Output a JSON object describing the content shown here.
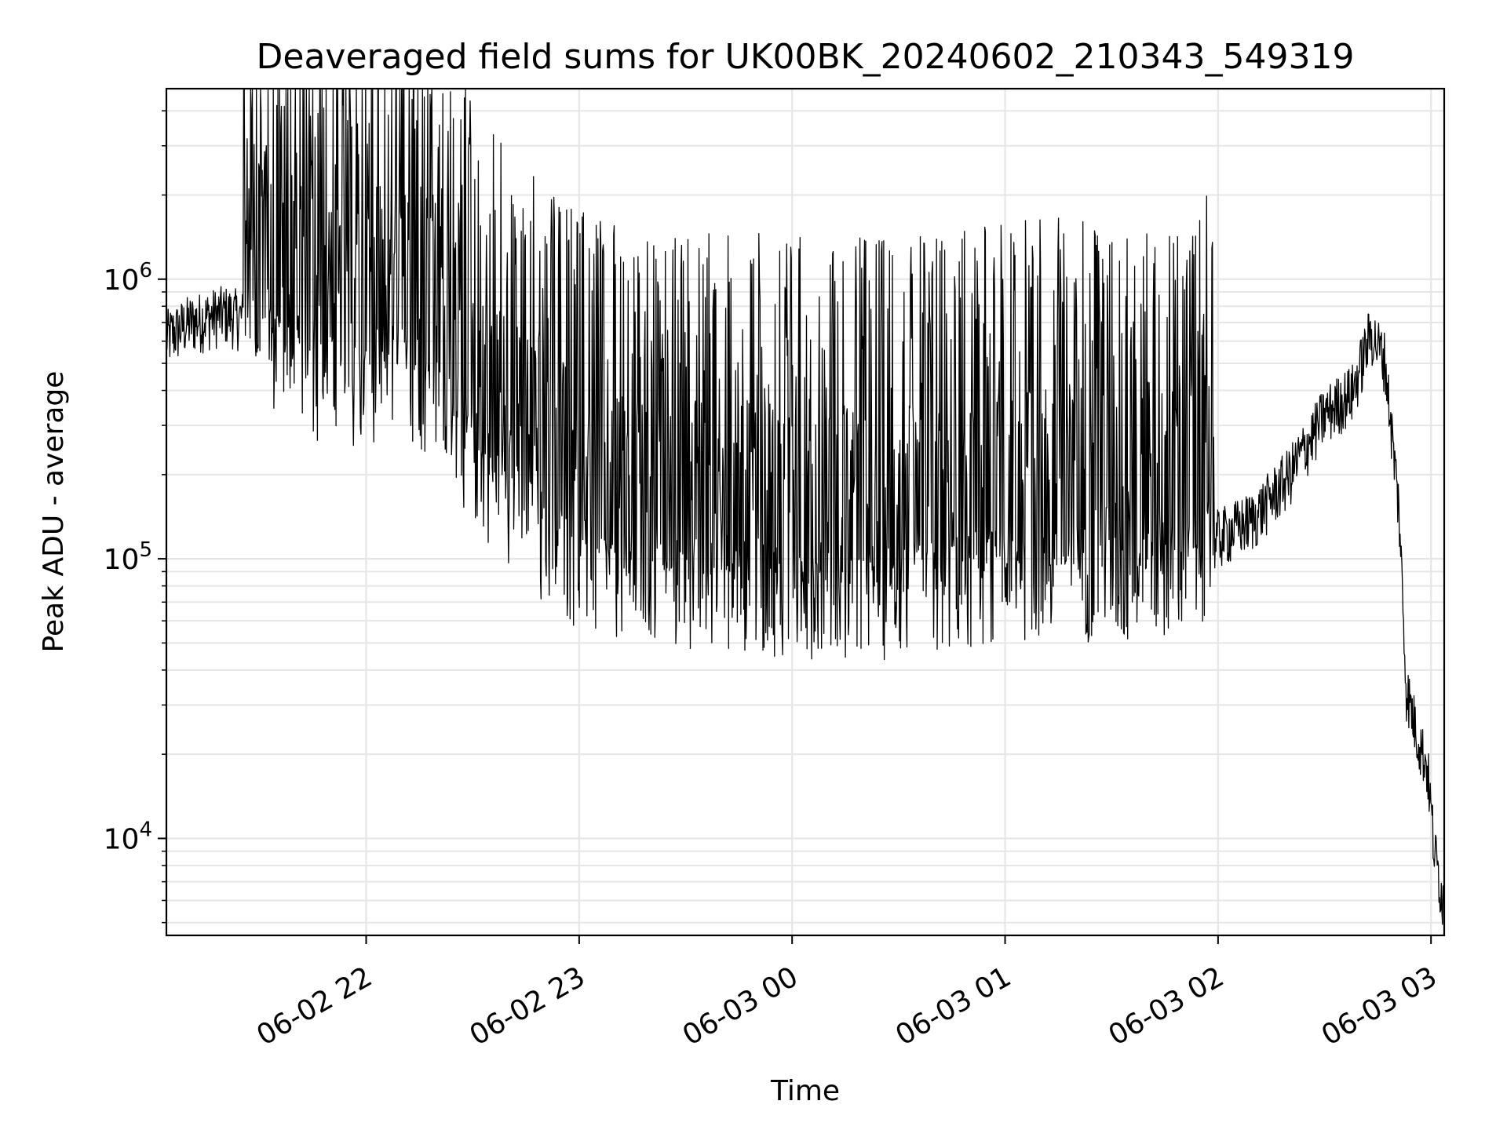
{
  "chart_data": {
    "type": "line",
    "title": "Deaveraged field sums for UK00BK_20240602_210343_549319",
    "xlabel": "Time",
    "ylabel": "Peak ADU - average",
    "y_scale": "log",
    "grid": true,
    "x_ticks": [
      "06-02 22",
      "06-02 23",
      "06-03 00",
      "06-03 01",
      "06-03 02",
      "06-03 03"
    ],
    "y_ticks": [
      {
        "value": 10000,
        "mantissa": "10",
        "exponent": "4"
      },
      {
        "value": 100000,
        "mantissa": "10",
        "exponent": "5"
      },
      {
        "value": 1000000,
        "mantissa": "10",
        "exponent": "6"
      }
    ],
    "x_range": [
      "2024-06-02 21:03:43",
      "2024-06-03 03:03:43"
    ],
    "y_range": [
      4500,
      4800000
    ],
    "series": [
      {
        "color": "#000000",
        "points": [
          [
            "2024-06-02 21:03:43",
            620000
          ],
          [
            "2024-06-02 21:10",
            700000
          ],
          [
            "2024-06-02 21:20",
            760000
          ],
          [
            "2024-06-02 21:30",
            700000
          ],
          [
            "2024-06-02 21:36",
            560000
          ],
          [
            "2024-06-02 21:45",
            480000
          ],
          [
            "2024-06-02 21:55",
            400000
          ],
          [
            "2024-06-02 22:05",
            500000
          ],
          [
            "2024-06-02 22:15",
            450000
          ],
          [
            "2024-06-02 22:25",
            300000
          ],
          [
            "2024-06-02 22:35",
            200000
          ],
          [
            "2024-06-02 22:45",
            140000
          ],
          [
            "2024-06-02 22:55",
            110000
          ],
          [
            "2024-06-02 23:05",
            90000
          ],
          [
            "2024-06-02 23:20",
            80000
          ],
          [
            "2024-06-02 23:40",
            85000
          ],
          [
            "2024-06-03 00:00",
            80000
          ],
          [
            "2024-06-03 00:30",
            78000
          ],
          [
            "2024-06-03 01:00",
            90000
          ],
          [
            "2024-06-03 01:20",
            95000
          ],
          [
            "2024-06-03 01:35",
            80000
          ],
          [
            "2024-06-03 01:50",
            95000
          ],
          [
            "2024-06-03 02:00",
            120000
          ],
          [
            "2024-06-03 02:10",
            140000
          ],
          [
            "2024-06-03 02:20",
            200000
          ],
          [
            "2024-06-03 02:30",
            330000
          ],
          [
            "2024-06-03 02:38",
            400000
          ],
          [
            "2024-06-03 02:43",
            650000
          ],
          [
            "2024-06-03 02:47",
            520000
          ],
          [
            "2024-06-03 02:51",
            150000
          ],
          [
            "2024-06-03 02:53",
            35000
          ],
          [
            "2024-06-03 02:56",
            24000
          ],
          [
            "2024-06-03 02:59",
            18000
          ],
          [
            "2024-06-03 03:01",
            9000
          ],
          [
            "2024-06-03 03:03:43",
            5800
          ]
        ]
      }
    ]
  }
}
